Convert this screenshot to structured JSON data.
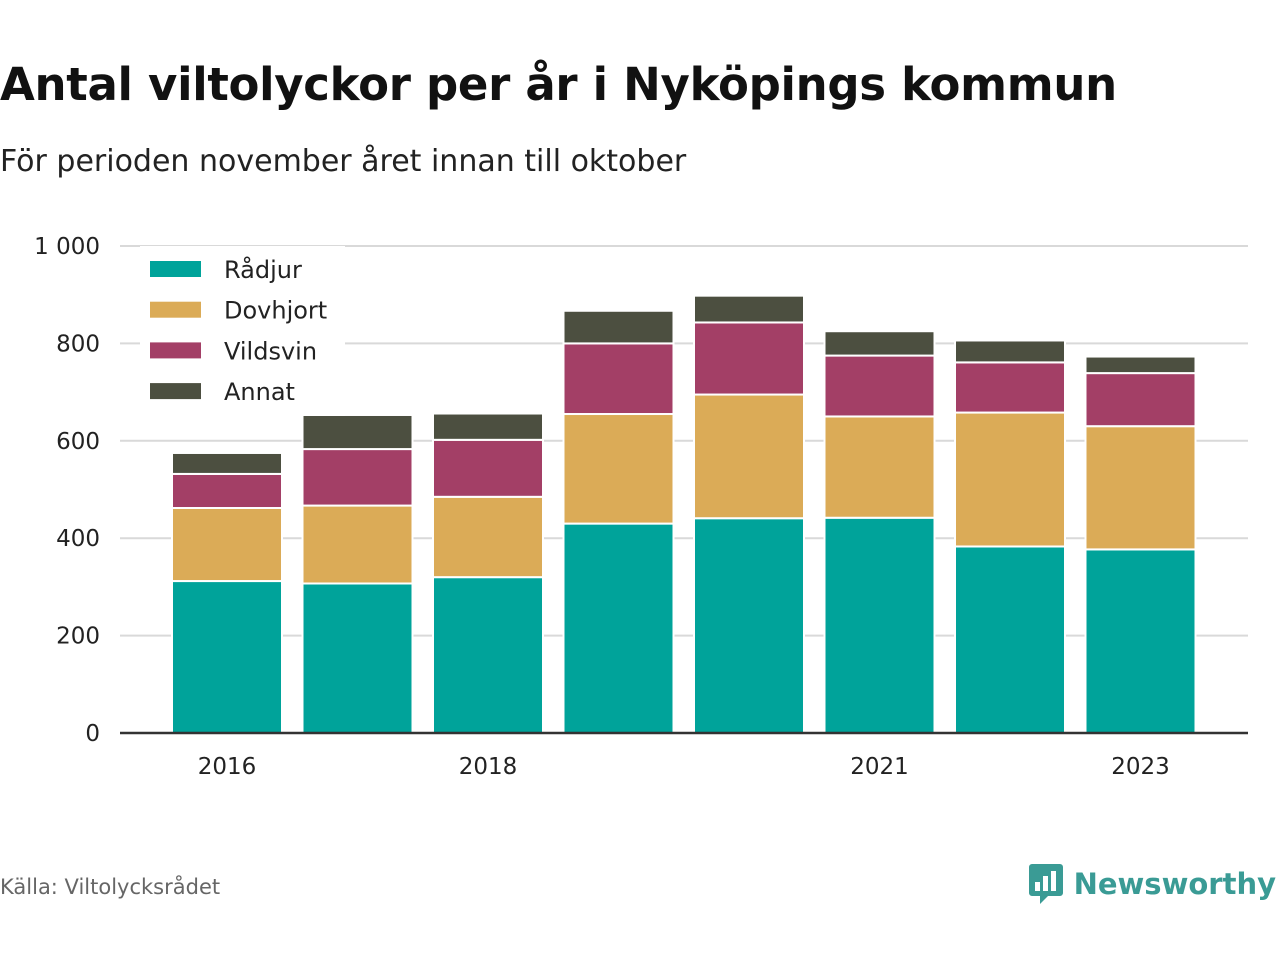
{
  "title": "Antal viltolyckor per år i Nyköpings kommun",
  "subtitle": "För perioden november året innan till oktober",
  "source": "Källa: Viltolycksrådet",
  "brand": {
    "name": "Newsworthy",
    "icon": "newsworthy-logo-icon",
    "color": "#3a9b95"
  },
  "chart_data": {
    "type": "bar",
    "stacked": true,
    "categories": [
      "2016",
      "2017",
      "2018",
      "2019",
      "2020",
      "2021",
      "2022",
      "2023"
    ],
    "x_tick_labels": [
      "2016",
      "",
      "2018",
      "",
      "",
      "2021",
      "",
      "2023"
    ],
    "y_ticks": [
      0,
      200,
      400,
      600,
      800,
      1000
    ],
    "y_tick_labels": [
      "0",
      "200",
      "400",
      "600",
      "800",
      "1 000"
    ],
    "ylim": [
      0,
      1000
    ],
    "grid": true,
    "legend_position": "top-left",
    "series": [
      {
        "name": "Rådjur",
        "color": "#00a39a",
        "values": [
          312,
          307,
          320,
          430,
          441,
          442,
          383,
          377
        ]
      },
      {
        "name": "Dovhjort",
        "color": "#dbab57",
        "values": [
          150,
          160,
          165,
          225,
          254,
          208,
          275,
          253
        ]
      },
      {
        "name": "Vildsvin",
        "color": "#a33f66",
        "values": [
          70,
          116,
          117,
          145,
          148,
          125,
          103,
          109
        ]
      },
      {
        "name": "Annat",
        "color": "#4c4f40",
        "values": [
          43,
          70,
          54,
          67,
          55,
          50,
          45,
          34
        ]
      }
    ]
  }
}
